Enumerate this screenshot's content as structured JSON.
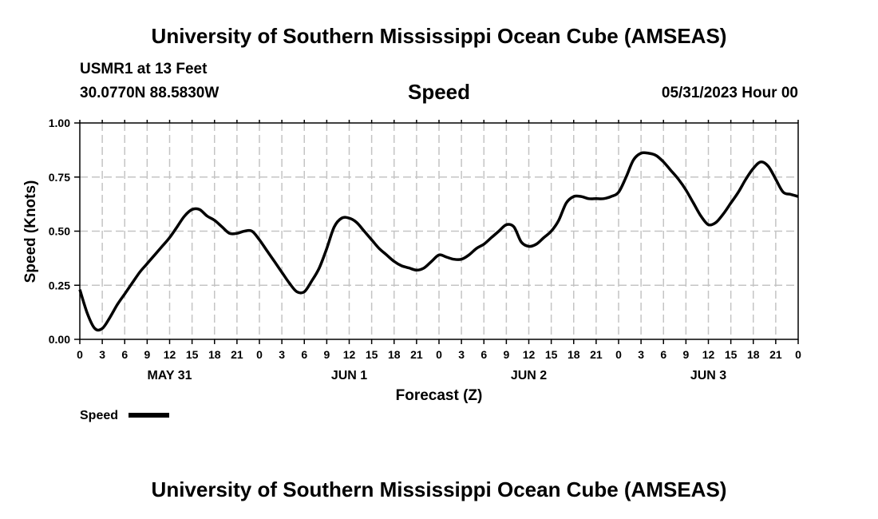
{
  "header": {
    "title": "University of Southern Mississippi Ocean Cube (AMSEAS)",
    "station": "USMR1 at 13 Feet",
    "location": "30.0770N  88.5830W",
    "variable": "Speed",
    "run": "05/31/2023 Hour 00"
  },
  "footer": {
    "title": "University of Southern Mississippi Ocean Cube (AMSEAS)"
  },
  "chart_data": {
    "type": "line",
    "ylabel": "Speed (Knots)",
    "xlabel": "Forecast (Z)",
    "ylim": [
      0,
      1
    ],
    "yticks": [
      0,
      0.25,
      0.5,
      0.75,
      1.0
    ],
    "ytick_labels": [
      "0.00",
      "0.25",
      "0.50",
      "0.75",
      "1.00"
    ],
    "xlim": [
      0,
      96
    ],
    "xtick_labels": [
      "0",
      "3",
      "6",
      "9",
      "12",
      "15",
      "18",
      "21",
      "0",
      "3",
      "6",
      "9",
      "12",
      "15",
      "18",
      "21",
      "0",
      "3",
      "6",
      "9",
      "12",
      "15",
      "18",
      "21",
      "0",
      "3",
      "6",
      "9",
      "12",
      "15",
      "18",
      "21",
      "0"
    ],
    "date_labels": [
      {
        "label": "MAY 31",
        "hour": 12
      },
      {
        "label": "JUN 1",
        "hour": 36
      },
      {
        "label": "JUN 2",
        "hour": 60
      },
      {
        "label": "JUN 3",
        "hour": 84
      }
    ],
    "grid": true,
    "legend": "bottom-left",
    "series": [
      {
        "name": "Speed",
        "color": "#000000",
        "x": [
          0,
          1,
          2,
          3,
          4,
          5,
          6,
          7,
          8,
          9,
          10,
          11,
          12,
          13,
          14,
          15,
          16,
          17,
          18,
          19,
          20,
          21,
          22,
          23,
          24,
          25,
          26,
          27,
          28,
          29,
          30,
          31,
          32,
          33,
          34,
          35,
          36,
          37,
          38,
          39,
          40,
          41,
          42,
          43,
          44,
          45,
          46,
          47,
          48,
          49,
          50,
          51,
          52,
          53,
          54,
          55,
          56,
          57,
          58,
          59,
          60,
          61,
          62,
          63,
          64,
          65,
          66,
          67,
          68,
          69,
          70,
          71,
          72,
          73,
          74,
          75,
          76,
          77,
          78,
          79,
          80,
          81,
          82,
          83,
          84,
          85,
          86,
          87,
          88,
          89,
          90,
          91,
          92,
          93,
          94,
          95,
          96
        ],
        "values": [
          0.23,
          0.12,
          0.05,
          0.05,
          0.1,
          0.16,
          0.21,
          0.26,
          0.31,
          0.35,
          0.39,
          0.43,
          0.47,
          0.52,
          0.57,
          0.6,
          0.6,
          0.57,
          0.55,
          0.52,
          0.49,
          0.49,
          0.5,
          0.5,
          0.46,
          0.41,
          0.36,
          0.31,
          0.26,
          0.22,
          0.22,
          0.27,
          0.33,
          0.42,
          0.52,
          0.56,
          0.56,
          0.54,
          0.5,
          0.46,
          0.42,
          0.39,
          0.36,
          0.34,
          0.33,
          0.32,
          0.33,
          0.36,
          0.39,
          0.38,
          0.37,
          0.37,
          0.39,
          0.42,
          0.44,
          0.47,
          0.5,
          0.53,
          0.52,
          0.45,
          0.43,
          0.44,
          0.47,
          0.5,
          0.55,
          0.63,
          0.66,
          0.66,
          0.65,
          0.65,
          0.65,
          0.66,
          0.68,
          0.75,
          0.83,
          0.86,
          0.86,
          0.85,
          0.82,
          0.78,
          0.74,
          0.69,
          0.63,
          0.57,
          0.53,
          0.54,
          0.58,
          0.63,
          0.68,
          0.74,
          0.79,
          0.82,
          0.8,
          0.74,
          0.68,
          0.67,
          0.66
        ]
      }
    ]
  }
}
